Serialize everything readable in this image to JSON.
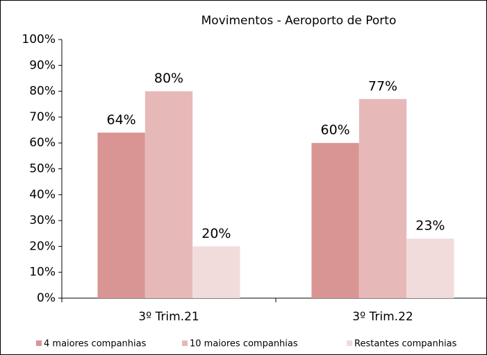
{
  "chart_data": {
    "type": "bar",
    "title": "Movimentos - Aeroporto de Porto",
    "categories": [
      "3º Trim.21",
      "3º Trim.22"
    ],
    "series": [
      {
        "name": "4 maiores companhias",
        "color": "#d99594",
        "values": [
          64,
          60
        ],
        "value_labels": [
          "64%",
          "60%"
        ]
      },
      {
        "name": "10 maiores companhias",
        "color": "#e6b9b8",
        "values": [
          80,
          77
        ],
        "value_labels": [
          "80%",
          "77%"
        ]
      },
      {
        "name": "Restantes companhias",
        "color": "#f2dcdb",
        "values": [
          20,
          23
        ],
        "value_labels": [
          "20%",
          "23%"
        ]
      }
    ],
    "ylim": [
      0,
      100
    ],
    "yticks": [
      {
        "value": 0,
        "label": "0%"
      },
      {
        "value": 10,
        "label": "10%"
      },
      {
        "value": 20,
        "label": "20%"
      },
      {
        "value": 30,
        "label": "30%"
      },
      {
        "value": 40,
        "label": "40%"
      },
      {
        "value": 50,
        "label": "50%"
      },
      {
        "value": 60,
        "label": "60%"
      },
      {
        "value": 70,
        "label": "70%"
      },
      {
        "value": 80,
        "label": "80%"
      },
      {
        "value": 90,
        "label": "90%"
      },
      {
        "value": 100,
        "label": "100%"
      }
    ],
    "grid": false,
    "legend": "bottom"
  }
}
